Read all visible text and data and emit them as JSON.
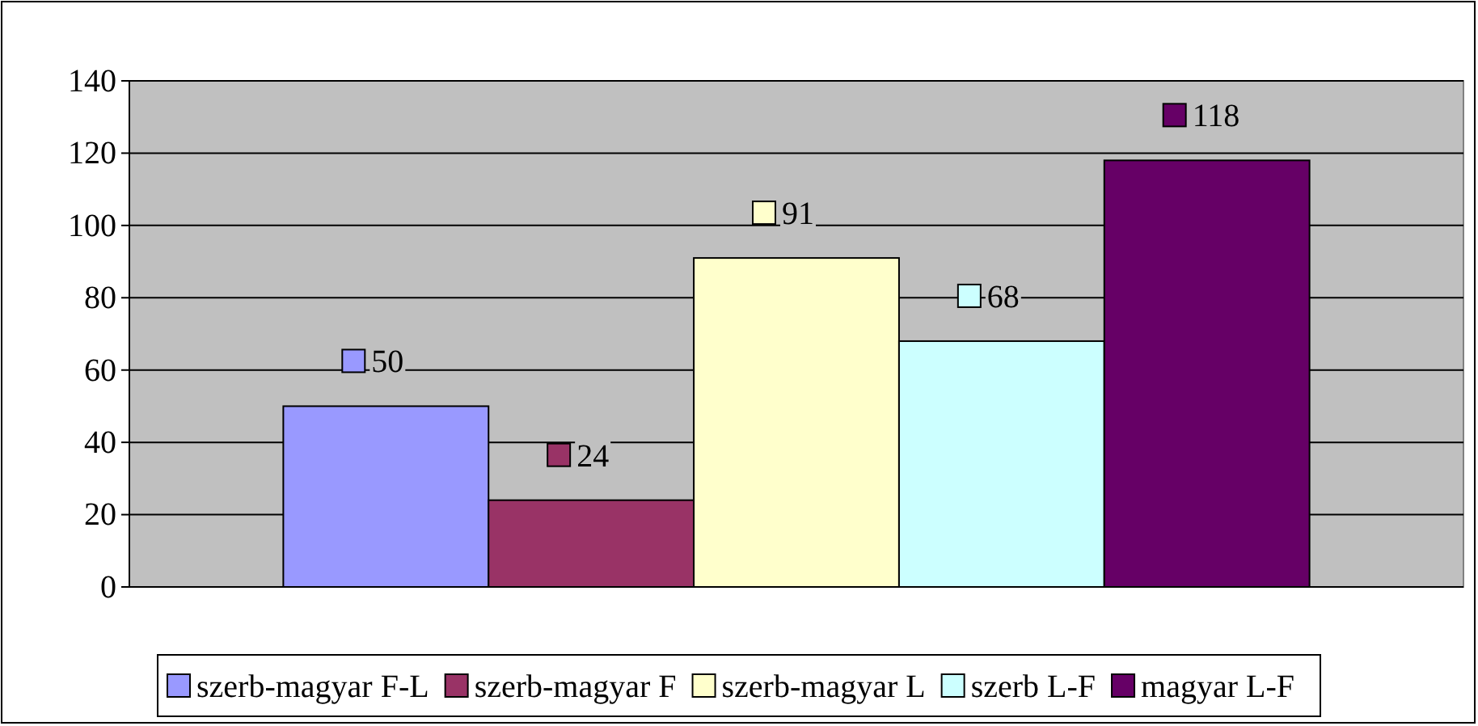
{
  "chart_data": {
    "type": "bar",
    "categories": [
      null
    ],
    "series": [
      {
        "name": "szerb-magyar F-L",
        "color": "#9999ff",
        "values": [
          50
        ]
      },
      {
        "name": "szerb-magyar F",
        "color": "#993366",
        "values": [
          24
        ]
      },
      {
        "name": "szerb-magyar L",
        "color": "#ffffcc",
        "values": [
          91
        ]
      },
      {
        "name": "szerb L-F",
        "color": "#ccffff",
        "values": [
          68
        ]
      },
      {
        "name": "magyar L-F",
        "color": "#660066",
        "values": [
          118
        ]
      }
    ],
    "ylim": [
      0,
      140
    ],
    "yticks": [
      0,
      20,
      40,
      60,
      80,
      100,
      120,
      140
    ],
    "grid": "y",
    "legend": "bottom",
    "data_labels": true
  }
}
